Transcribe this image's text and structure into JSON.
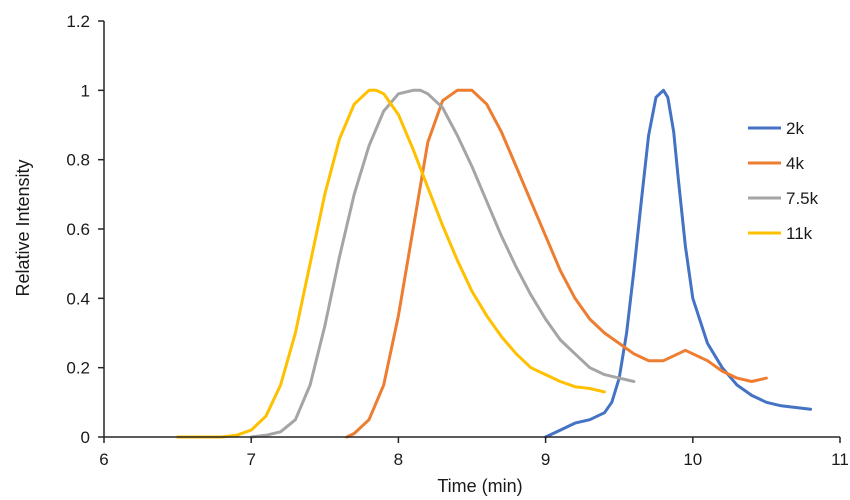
{
  "chart_data": {
    "type": "line",
    "title": "",
    "xlabel": "Time (min)",
    "ylabel": "Relative Intensity",
    "xlim": [
      6,
      11
    ],
    "ylim": [
      0,
      1.2
    ],
    "xticks": [
      "6",
      "7",
      "8",
      "9",
      "10",
      "11"
    ],
    "yticks": [
      "0",
      "0.2",
      "0.4",
      "0.6",
      "0.8",
      "1",
      "1.2"
    ],
    "grid": false,
    "legend_position": "right",
    "series": [
      {
        "name": "2k",
        "color": "#4472C4",
        "x": [
          9.0,
          9.1,
          9.2,
          9.3,
          9.4,
          9.45,
          9.5,
          9.55,
          9.6,
          9.65,
          9.7,
          9.75,
          9.8,
          9.83,
          9.87,
          9.9,
          9.95,
          10.0,
          10.1,
          10.2,
          10.3,
          10.4,
          10.5,
          10.6,
          10.7,
          10.8
        ],
        "y": [
          0.0,
          0.02,
          0.04,
          0.05,
          0.07,
          0.1,
          0.17,
          0.3,
          0.48,
          0.68,
          0.87,
          0.98,
          1.0,
          0.98,
          0.88,
          0.75,
          0.55,
          0.4,
          0.27,
          0.2,
          0.15,
          0.12,
          0.1,
          0.09,
          0.085,
          0.08
        ]
      },
      {
        "name": "4k",
        "color": "#ED7D31",
        "x": [
          7.65,
          7.7,
          7.8,
          7.9,
          8.0,
          8.1,
          8.2,
          8.3,
          8.4,
          8.5,
          8.6,
          8.7,
          8.8,
          8.9,
          9.0,
          9.1,
          9.2,
          9.3,
          9.4,
          9.5,
          9.6,
          9.7,
          9.8,
          9.9,
          9.95,
          10.0,
          10.1,
          10.2,
          10.3,
          10.4,
          10.5
        ],
        "y": [
          0.0,
          0.01,
          0.05,
          0.15,
          0.35,
          0.6,
          0.85,
          0.97,
          1.0,
          1.0,
          0.96,
          0.88,
          0.78,
          0.68,
          0.58,
          0.48,
          0.4,
          0.34,
          0.3,
          0.27,
          0.24,
          0.22,
          0.22,
          0.24,
          0.25,
          0.24,
          0.22,
          0.19,
          0.17,
          0.16,
          0.17
        ]
      },
      {
        "name": "7.5k",
        "color": "#A5A5A5",
        "x": [
          7.0,
          7.1,
          7.2,
          7.3,
          7.4,
          7.5,
          7.6,
          7.7,
          7.8,
          7.9,
          8.0,
          8.1,
          8.15,
          8.2,
          8.3,
          8.4,
          8.5,
          8.6,
          8.7,
          8.8,
          8.9,
          9.0,
          9.1,
          9.2,
          9.3,
          9.4,
          9.5,
          9.6
        ],
        "y": [
          0.0,
          0.005,
          0.015,
          0.05,
          0.15,
          0.32,
          0.52,
          0.7,
          0.84,
          0.94,
          0.99,
          1.0,
          1.0,
          0.99,
          0.95,
          0.87,
          0.78,
          0.68,
          0.58,
          0.49,
          0.41,
          0.34,
          0.28,
          0.24,
          0.2,
          0.18,
          0.17,
          0.16
        ]
      },
      {
        "name": "11k",
        "color": "#FFC000",
        "x": [
          6.5,
          6.8,
          6.9,
          7.0,
          7.1,
          7.2,
          7.3,
          7.4,
          7.5,
          7.6,
          7.7,
          7.8,
          7.85,
          7.9,
          8.0,
          8.1,
          8.2,
          8.3,
          8.4,
          8.5,
          8.6,
          8.7,
          8.8,
          8.9,
          9.0,
          9.1,
          9.2,
          9.3,
          9.4
        ],
        "y": [
          0.0,
          0.0,
          0.005,
          0.02,
          0.06,
          0.15,
          0.3,
          0.5,
          0.7,
          0.86,
          0.96,
          1.0,
          1.0,
          0.99,
          0.93,
          0.83,
          0.72,
          0.61,
          0.51,
          0.42,
          0.35,
          0.29,
          0.24,
          0.2,
          0.18,
          0.16,
          0.145,
          0.14,
          0.13
        ]
      }
    ]
  }
}
